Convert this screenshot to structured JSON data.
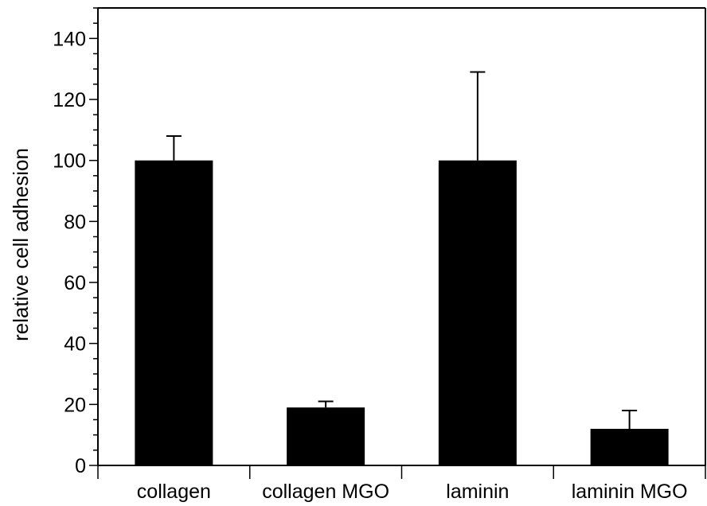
{
  "chart_data": {
    "type": "bar",
    "categories": [
      "collagen",
      "collagen MGO",
      "laminin",
      "laminin MGO"
    ],
    "values": [
      100,
      19,
      100,
      12
    ],
    "error_bars": [
      8,
      2,
      29,
      6
    ],
    "title": "",
    "xlabel": "",
    "ylabel": "relative cell adhesion",
    "ylim": [
      0,
      150
    ],
    "yticks": [
      0,
      20,
      40,
      60,
      80,
      100,
      120,
      140
    ],
    "ytick_labels": [
      "0",
      "20",
      "40",
      "60",
      "80",
      "100",
      "120",
      "140"
    ],
    "minor_ytick_step": 5,
    "grid": false,
    "legend": "none",
    "bar_color": "#000000"
  }
}
